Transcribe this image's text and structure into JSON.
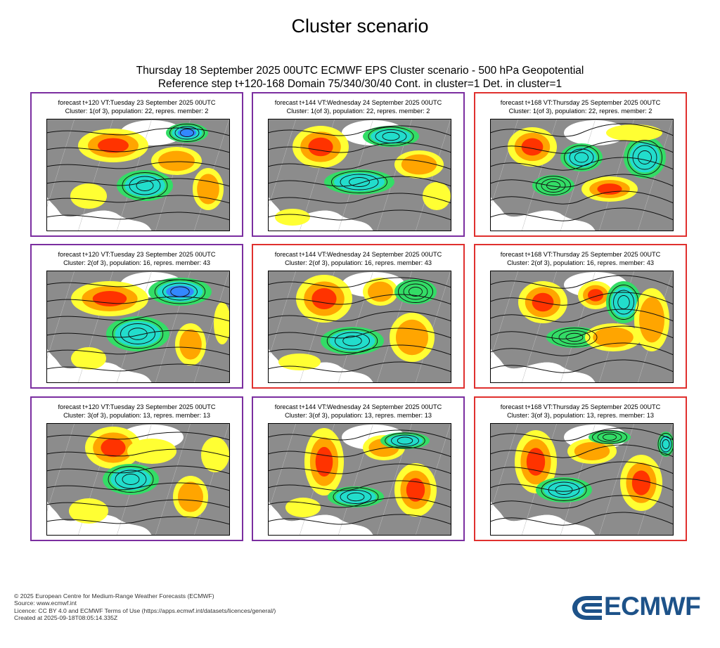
{
  "page_title": "Cluster scenario",
  "header": {
    "line1": "Thursday 18 September 2025 00UTC ECMWF EPS Cluster scenario - 500 hPa Geopotential",
    "line2": "Reference step t+120-168 Domain 75/340/30/40 Cont. in cluster=1 Det. in cluster=1"
  },
  "colors": {
    "purple_frame": "#7b2ea0",
    "red_frame": "#e0302e",
    "land": "#8c8c8c",
    "positive_anomaly": [
      "#ffff33",
      "#ffa500",
      "#ff3300",
      "#b01050"
    ],
    "negative_anomaly": [
      "#33dd66",
      "#22ddcc",
      "#3388ff",
      "#5544bb"
    ]
  },
  "chart_data": {
    "type": "map",
    "layout": "3 rows (clusters) x 3 columns (forecast steps)",
    "panels": [
      {
        "row": 1,
        "col": 1,
        "frame": "purple",
        "caption1": "forecast t+120 VT:Tuesday 23 September 2025 00UTC",
        "caption2": "Cluster: 1(of 3), population: 22, repres. member: 2",
        "cluster": 1,
        "population": 22,
        "member": 2,
        "step": 120
      },
      {
        "row": 1,
        "col": 2,
        "frame": "purple",
        "caption1": "forecast t+144 VT:Wednesday 24 September 2025 00UTC",
        "caption2": "Cluster: 1(of 3), population: 22, repres. member: 2",
        "cluster": 1,
        "population": 22,
        "member": 2,
        "step": 144
      },
      {
        "row": 1,
        "col": 3,
        "frame": "red",
        "caption1": "forecast t+168 VT:Thursday 25 September 2025 00UTC",
        "caption2": "Cluster: 1(of 3), population: 22, repres. member: 2",
        "cluster": 1,
        "population": 22,
        "member": 2,
        "step": 168
      },
      {
        "row": 2,
        "col": 1,
        "frame": "purple",
        "caption1": "forecast t+120 VT:Tuesday 23 September 2025 00UTC",
        "caption2": "Cluster: 2(of 3), population: 16, repres. member: 43",
        "cluster": 2,
        "population": 16,
        "member": 43,
        "step": 120
      },
      {
        "row": 2,
        "col": 2,
        "frame": "red",
        "caption1": "forecast t+144 VT:Wednesday 24 September 2025 00UTC",
        "caption2": "Cluster: 2(of 3), population: 16, repres. member: 43",
        "cluster": 2,
        "population": 16,
        "member": 43,
        "step": 144
      },
      {
        "row": 2,
        "col": 3,
        "frame": "red",
        "caption1": "forecast t+168 VT:Thursday 25 September 2025 00UTC",
        "caption2": "Cluster: 2(of 3), population: 16, repres. member: 43",
        "cluster": 2,
        "population": 16,
        "member": 43,
        "step": 168
      },
      {
        "row": 3,
        "col": 1,
        "frame": "purple",
        "caption1": "forecast t+120 VT:Tuesday 23 September 2025 00UTC",
        "caption2": "Cluster: 3(of 3), population: 13, repres. member: 13",
        "cluster": 3,
        "population": 13,
        "member": 13,
        "step": 120
      },
      {
        "row": 3,
        "col": 2,
        "frame": "purple",
        "caption1": "forecast t+144 VT:Wednesday 24 September 2025 00UTC",
        "caption2": "Cluster: 3(of 3), population: 13, repres. member: 13",
        "cluster": 3,
        "population": 13,
        "member": 13,
        "step": 144
      },
      {
        "row": 3,
        "col": 3,
        "frame": "red",
        "caption1": "forecast t+168 VT:Thursday 25 September 2025 00UTC",
        "caption2": "Cluster: 3(of 3), population: 13, repres. member: 13",
        "cluster": 3,
        "population": 13,
        "member": 13,
        "step": 168
      }
    ]
  },
  "footer": {
    "line1": "© 2025 European Centre for Medium-Range Weather Forecasts (ECMWF)",
    "line2": "Source: www.ecmwf.int",
    "line3": "Licence: CC BY 4.0 and ECMWF Terms of Use (https://apps.ecmwf.int/datasets/licences/general/)",
    "line4": "Created at 2025-09-18T08:05:14.335Z"
  },
  "logo": {
    "text": "ECMWF"
  }
}
